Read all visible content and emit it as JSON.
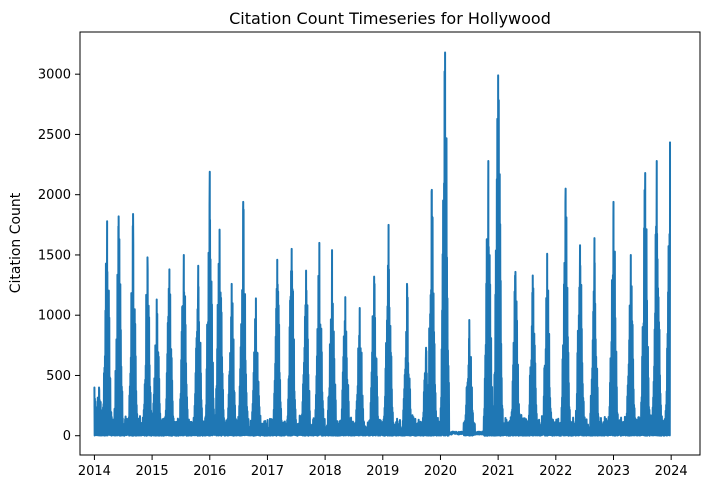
{
  "chart_data": {
    "type": "line",
    "title": "Citation Count Timeseries for Hollywood",
    "xlabel": "",
    "ylabel": "Citation Count",
    "xlim": [
      2013.75,
      2024.5
    ],
    "ylim": [
      -160,
      3350
    ],
    "x_ticks": [
      2014,
      2015,
      2016,
      2017,
      2018,
      2019,
      2020,
      2021,
      2022,
      2023,
      2024
    ],
    "x_tick_labels": [
      "2014",
      "2015",
      "2016",
      "2017",
      "2018",
      "2019",
      "2020",
      "2021",
      "2022",
      "2023",
      "2024"
    ],
    "y_ticks": [
      0,
      500,
      1000,
      1500,
      2000,
      2500,
      3000
    ],
    "y_tick_labels": [
      "0",
      "500",
      "1000",
      "1500",
      "2000",
      "2500",
      "3000"
    ],
    "grid": false,
    "line_color": "#1f77b4",
    "series": [
      {
        "peaks": [
          [
            2014.0,
            400
          ],
          [
            2014.08,
            400
          ],
          [
            2014.17,
            380
          ],
          [
            2014.22,
            1780
          ],
          [
            2014.42,
            1820
          ],
          [
            2014.67,
            1840
          ],
          [
            2014.92,
            1480
          ],
          [
            2015.08,
            1130
          ],
          [
            2015.3,
            1380
          ],
          [
            2015.55,
            1500
          ],
          [
            2015.8,
            1410
          ],
          [
            2016.0,
            2190
          ],
          [
            2016.17,
            1710
          ],
          [
            2016.38,
            1260
          ],
          [
            2016.58,
            1940
          ],
          [
            2016.8,
            1140
          ],
          [
            2017.17,
            1460
          ],
          [
            2017.42,
            1550
          ],
          [
            2017.67,
            1370
          ],
          [
            2017.9,
            1600
          ],
          [
            2018.12,
            1540
          ],
          [
            2018.35,
            1150
          ],
          [
            2018.6,
            1060
          ],
          [
            2018.85,
            1320
          ],
          [
            2019.1,
            1750
          ],
          [
            2019.42,
            1260
          ],
          [
            2019.75,
            730
          ],
          [
            2019.85,
            2040
          ],
          [
            2020.08,
            3180
          ],
          [
            2020.5,
            960
          ],
          [
            2020.83,
            2280
          ],
          [
            2021.0,
            2990
          ],
          [
            2021.3,
            1360
          ],
          [
            2021.6,
            1330
          ],
          [
            2021.85,
            1510
          ],
          [
            2022.17,
            2050
          ],
          [
            2022.42,
            1580
          ],
          [
            2022.67,
            1640
          ],
          [
            2023.0,
            1940
          ],
          [
            2023.3,
            1500
          ],
          [
            2023.55,
            2180
          ],
          [
            2023.75,
            2280
          ],
          [
            2023.98,
            2440
          ]
        ],
        "quiet_periods": [
          [
            2020.15,
            2020.4
          ],
          [
            2020.6,
            2020.75
          ]
        ]
      }
    ]
  }
}
